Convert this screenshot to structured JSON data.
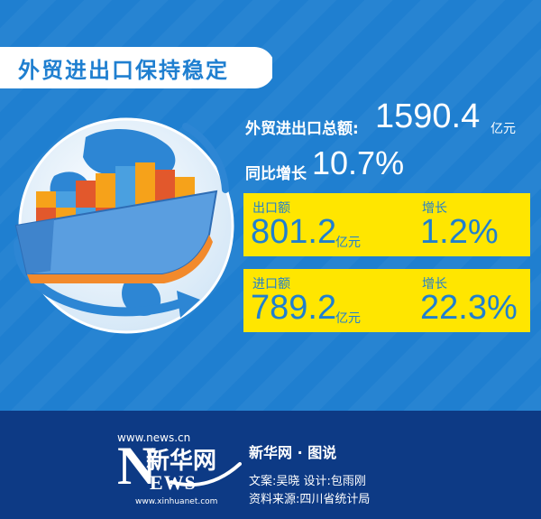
{
  "title": "外贸进出口保持稳定",
  "total": {
    "label": "外贸进出口总额:",
    "value": "1590.4",
    "unit": "亿元"
  },
  "yoy": {
    "label": "同比增长",
    "value": "10.7%"
  },
  "exports": {
    "label": "出口额",
    "value": "801.2",
    "unit": "亿元",
    "growth_label": "增长",
    "growth_value": "1.2%"
  },
  "imports": {
    "label": "进口额",
    "value": "789.2",
    "unit": "亿元",
    "growth_label": "增长",
    "growth_value": "22.3%"
  },
  "footer": {
    "site": "www.news.cn",
    "logo_cn": "新华网",
    "logo_letter": "N",
    "logo_rest": "EWS",
    "logo_url": "www.xinhuanet.com",
    "brand": "新华网 · 图说",
    "credits": "文案:吴晓  设计:包雨刚",
    "source": "资料来源:四川省统计局"
  },
  "colors": {
    "background": "#1f7fd0",
    "card": "#ffe600",
    "footer": "#0d3a85",
    "accent_text": "#1f7fd0"
  }
}
